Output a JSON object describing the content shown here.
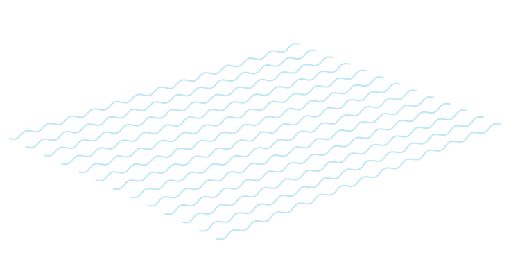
{
  "graphic": {
    "kind": "wavy-lines-pattern",
    "line_count": 13,
    "stroke_color": "#bde6f4"
  }
}
